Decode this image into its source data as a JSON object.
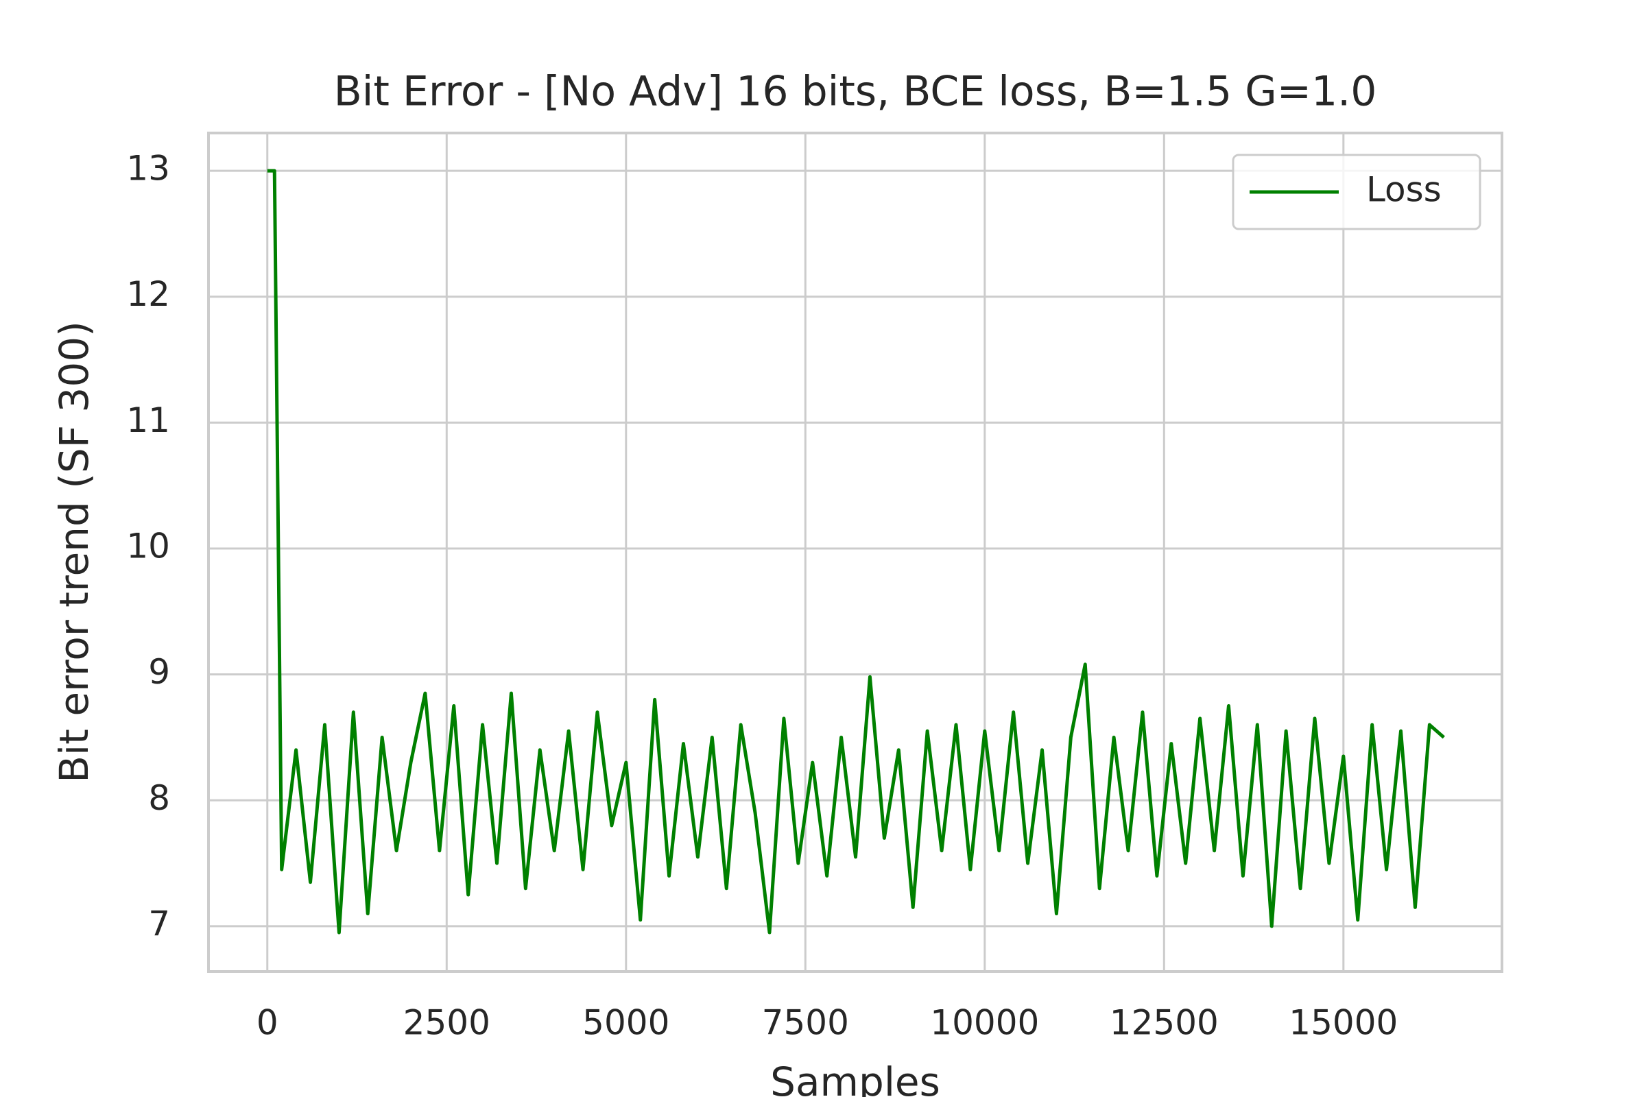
{
  "chart_data": {
    "type": "line",
    "title": "Bit Error - [No Adv] 16 bits, BCE loss, B=1.5 G=1.0",
    "x_label": "Samples",
    "y_label": "Bit error trend (SF 300)",
    "x": [
      0,
      100,
      200,
      400,
      600,
      800,
      1000,
      1200,
      1400,
      1600,
      1800,
      2000,
      2200,
      2400,
      2600,
      2800,
      3000,
      3200,
      3400,
      3600,
      3800,
      4000,
      4200,
      4400,
      4600,
      4800,
      5000,
      5200,
      5400,
      5600,
      5800,
      6000,
      6200,
      6400,
      6600,
      6800,
      7000,
      7200,
      7400,
      7600,
      7800,
      8000,
      8200,
      8400,
      8600,
      8800,
      9000,
      9200,
      9400,
      9600,
      9800,
      10000,
      10200,
      10400,
      10600,
      10800,
      11000,
      11200,
      11400,
      11600,
      11800,
      12000,
      12200,
      12400,
      12600,
      12800,
      13000,
      13200,
      13400,
      13600,
      13800,
      14000,
      14200,
      14400,
      14600,
      14800,
      15000,
      15200,
      15400,
      15600,
      15800,
      16000,
      16200,
      16400
    ],
    "series": [
      {
        "name": "Loss",
        "color": "#008000",
        "values": [
          13,
          13,
          7.45,
          8.4,
          7.35,
          8.6,
          6.95,
          8.7,
          7.1,
          8.5,
          7.6,
          8.3,
          8.85,
          7.6,
          8.75,
          7.25,
          8.6,
          7.5,
          8.85,
          7.3,
          8.4,
          7.6,
          8.55,
          7.45,
          8.7,
          7.8,
          8.3,
          7.05,
          8.8,
          7.4,
          8.45,
          7.55,
          8.5,
          7.3,
          8.6,
          7.9,
          6.95,
          8.65,
          7.5,
          8.3,
          7.4,
          8.5,
          7.55,
          8.98,
          7.7,
          8.4,
          7.15,
          8.55,
          7.6,
          8.6,
          7.45,
          8.55,
          7.6,
          8.7,
          7.5,
          8.4,
          7.1,
          8.5,
          9.08,
          7.3,
          8.5,
          7.6,
          8.7,
          7.4,
          8.45,
          7.5,
          8.65,
          7.6,
          8.75,
          7.4,
          8.6,
          7.0,
          8.55,
          7.3,
          8.65,
          7.5,
          8.35,
          7.05,
          8.6,
          7.45,
          8.55,
          7.15,
          8.6,
          8.5
        ]
      }
    ],
    "xlim": [
      -820,
      17210
    ],
    "xticks": [
      0,
      2500,
      5000,
      7500,
      10000,
      12500,
      15000
    ],
    "ylim": [
      6.64,
      13.3
    ],
    "yticks": [
      7,
      8,
      9,
      10,
      11,
      12,
      13
    ],
    "grid": true,
    "legend": "upper-right"
  }
}
